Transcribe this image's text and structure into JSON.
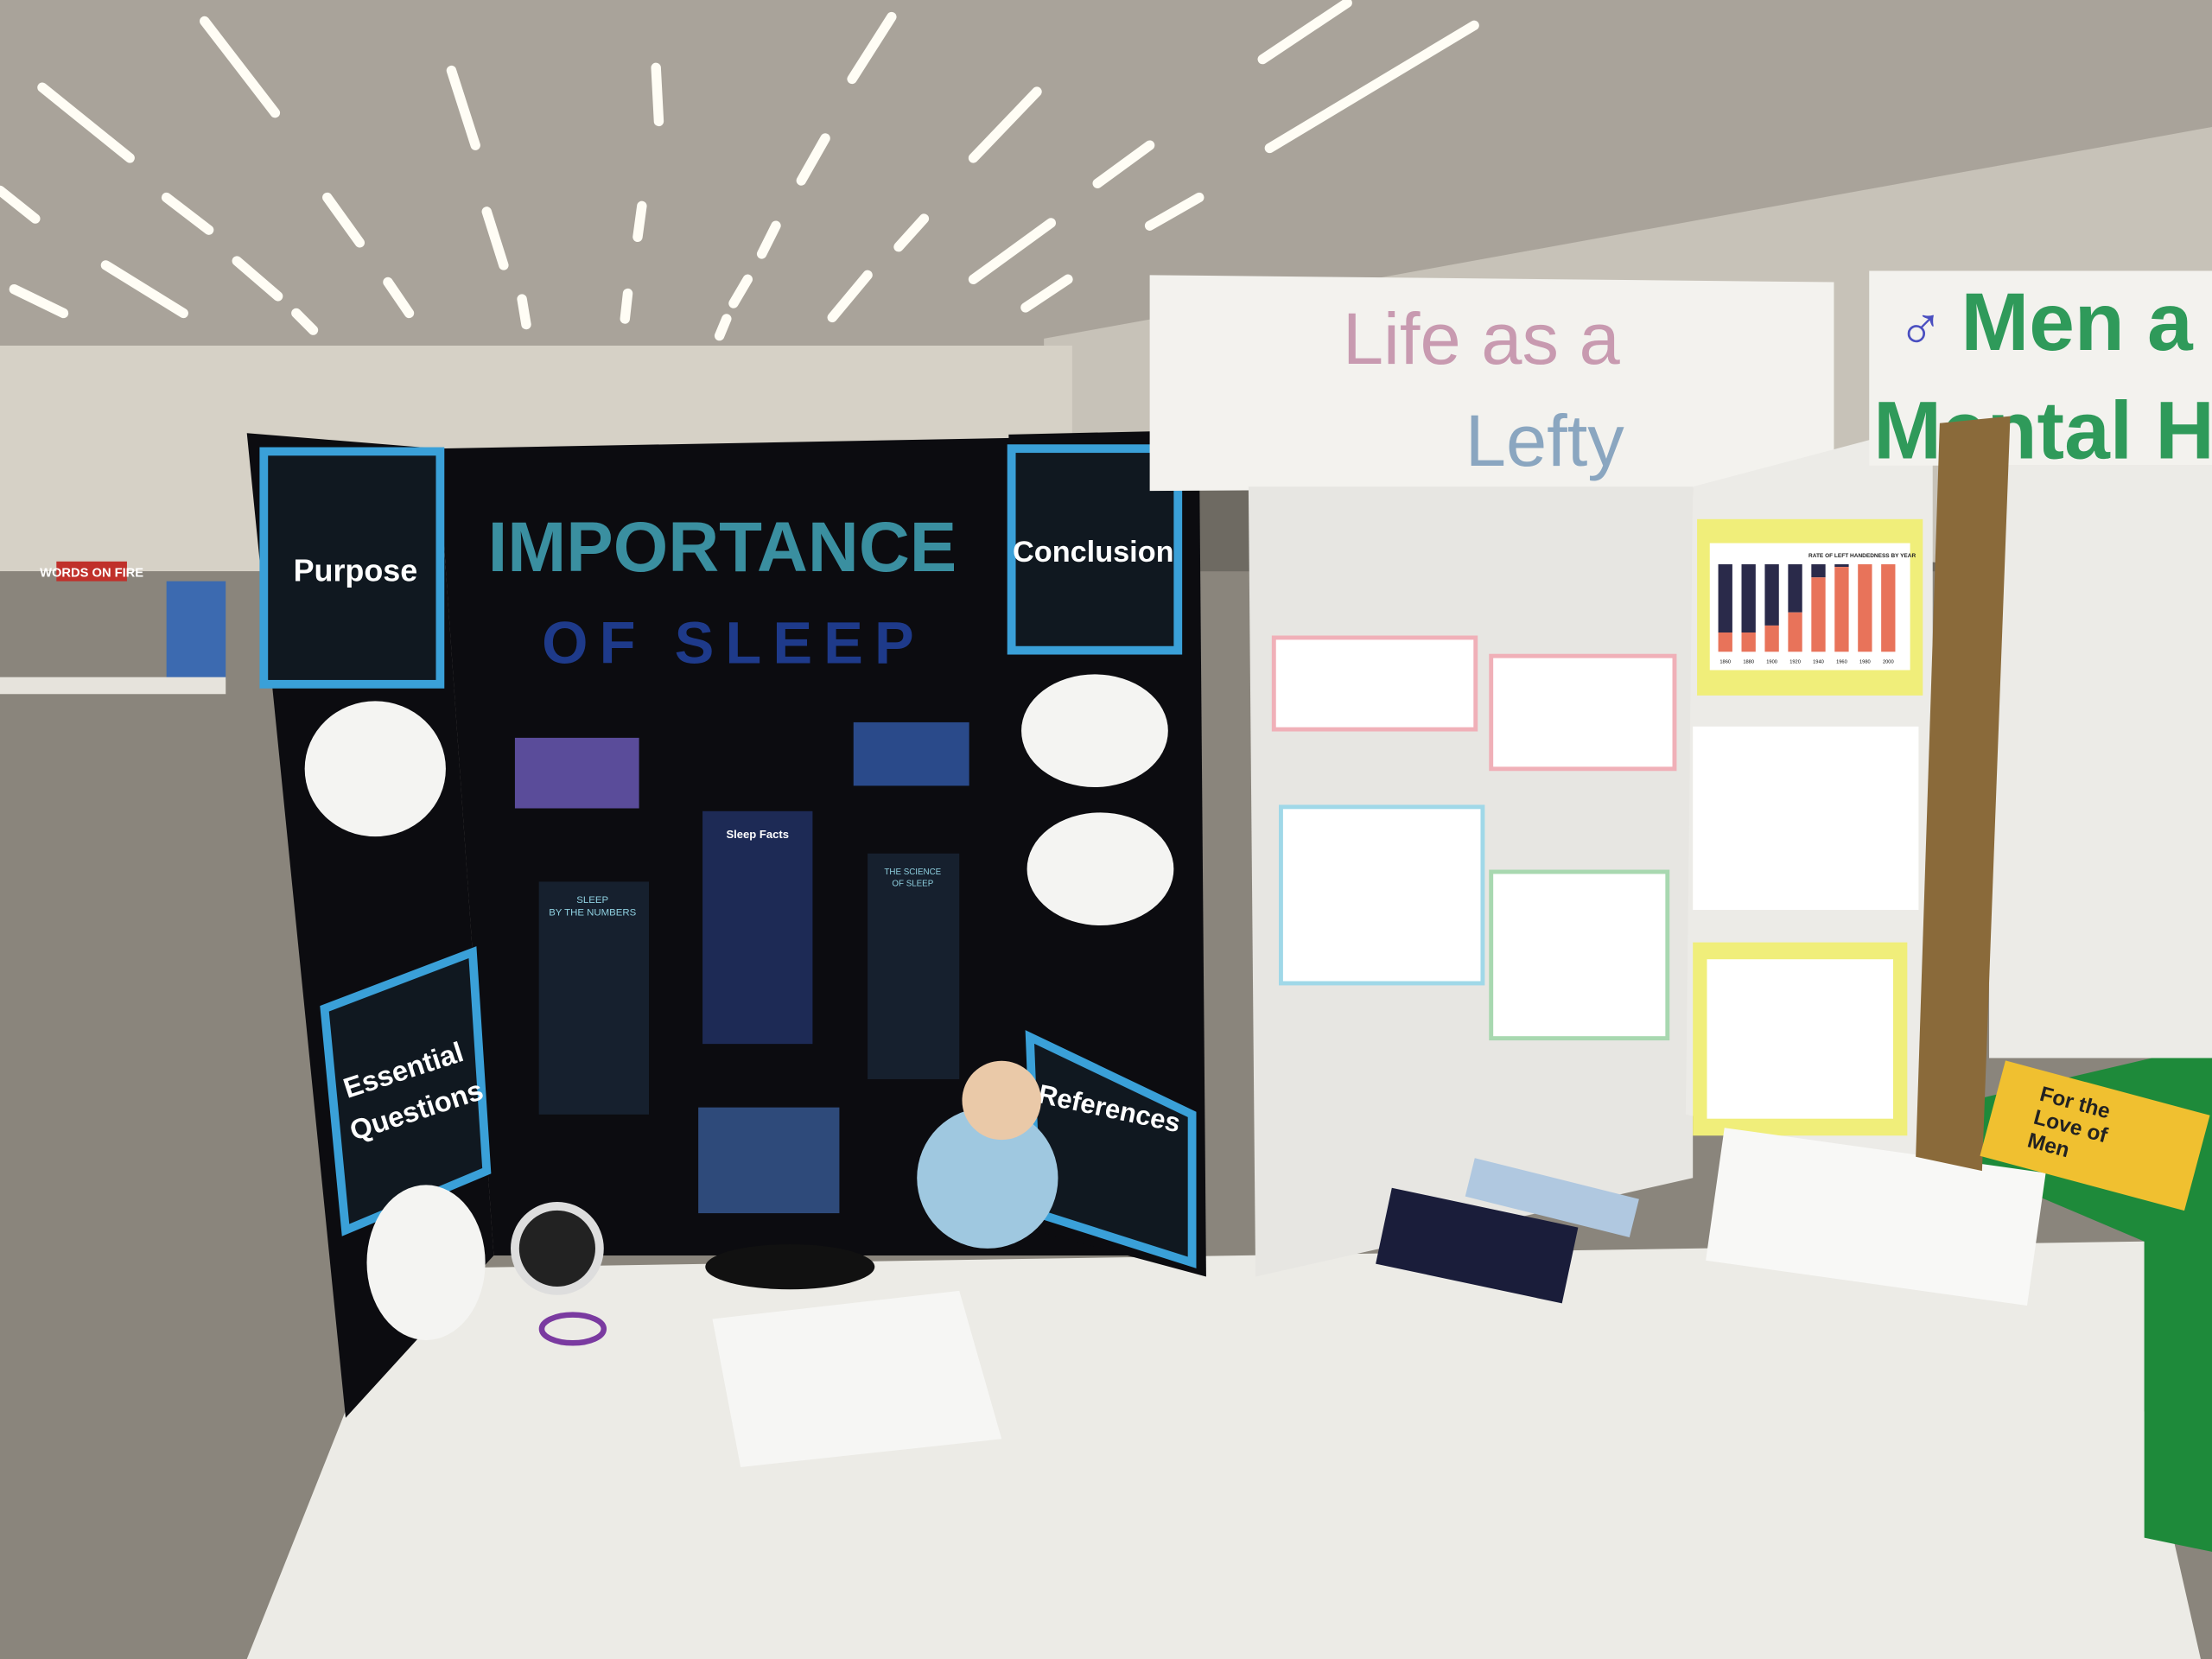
{
  "background": {
    "sign_words_on_fire": "WORDS ON FIRE"
  },
  "sleep_board": {
    "title_line1": "IMPORTANCE",
    "title_line2": "OF SLEEP",
    "purpose": "Purpose",
    "conclusion": "Conclusion",
    "essential_questions_1": "Essential",
    "essential_questions_2": "Questions",
    "references": "References",
    "poster_sleep_facts": "Sleep Facts",
    "poster_sleep_numbers_1": "SLEEP",
    "poster_sleep_numbers_2": "BY THE NUMBERS",
    "poster_science_1": "THE SCIENCE",
    "poster_science_2": "OF SLEEP",
    "colors": {
      "board": "#0c0c10",
      "frame": "#3aa0d8",
      "title": "#3a8fa0"
    }
  },
  "lefty_board": {
    "title_line1": "Life as a",
    "title_line2": "Lefty",
    "chart_title": "RATE OF LEFT HANDEDNESS BY YEAR",
    "chart_years": [
      "1860",
      "1880",
      "1900",
      "1920",
      "1940",
      "1960",
      "1980",
      "2000"
    ]
  },
  "mental_health_board": {
    "title_line1": "Men a",
    "title_line2": "Mental H",
    "book_title_1": "For the",
    "book_title_2": "Love of",
    "book_title_3": "Men",
    "colors": {
      "title": "#2f9a5a",
      "symbol": "#4a4fc0",
      "tablecloth": "#1e8a3a"
    }
  }
}
